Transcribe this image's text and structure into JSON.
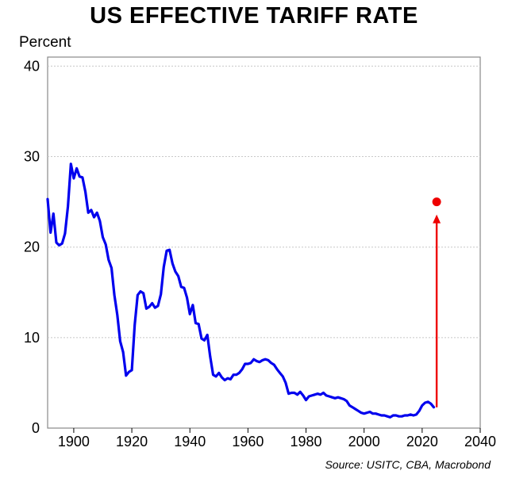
{
  "chart_data": {
    "type": "line",
    "title": "US EFFECTIVE TARIFF RATE",
    "ylabel": "Percent",
    "xlabel": "",
    "source": "Source: USITC, CBA, Macrobond",
    "xlim": [
      1891,
      2040
    ],
    "ylim": [
      0,
      41
    ],
    "xticks": [
      1900,
      1920,
      1940,
      1960,
      1980,
      2000,
      2020,
      2040
    ],
    "yticks": [
      0,
      10,
      20,
      30,
      40
    ],
    "grid": true,
    "series": [
      {
        "name": "US effective tariff rate",
        "color": "#0000ee",
        "x": [
          1891,
          1892,
          1893,
          1894,
          1895,
          1896,
          1897,
          1898,
          1899,
          1900,
          1901,
          1902,
          1903,
          1904,
          1905,
          1906,
          1907,
          1908,
          1909,
          1910,
          1911,
          1912,
          1913,
          1914,
          1915,
          1916,
          1917,
          1918,
          1919,
          1920,
          1921,
          1922,
          1923,
          1924,
          1925,
          1926,
          1927,
          1928,
          1929,
          1930,
          1931,
          1932,
          1933,
          1934,
          1935,
          1936,
          1937,
          1938,
          1939,
          1940,
          1941,
          1942,
          1943,
          1944,
          1945,
          1946,
          1947,
          1948,
          1949,
          1950,
          1951,
          1952,
          1953,
          1954,
          1955,
          1956,
          1957,
          1958,
          1959,
          1960,
          1961,
          1962,
          1963,
          1964,
          1965,
          1966,
          1967,
          1968,
          1969,
          1970,
          1971,
          1972,
          1973,
          1974,
          1975,
          1976,
          1977,
          1978,
          1979,
          1980,
          1981,
          1982,
          1983,
          1984,
          1985,
          1986,
          1987,
          1988,
          1989,
          1990,
          1991,
          1992,
          1993,
          1994,
          1995,
          1996,
          1997,
          1998,
          1999,
          2000,
          2001,
          2002,
          2003,
          2004,
          2005,
          2006,
          2007,
          2008,
          2009,
          2010,
          2011,
          2012,
          2013,
          2014,
          2015,
          2016,
          2017,
          2018,
          2019,
          2020,
          2021,
          2022,
          2023,
          2024
        ],
        "values": [
          25.3,
          21.6,
          23.7,
          20.5,
          20.2,
          20.4,
          21.5,
          24.5,
          29.2,
          27.6,
          28.7,
          27.8,
          27.7,
          26.1,
          23.8,
          24.1,
          23.3,
          23.8,
          22.9,
          21.1,
          20.3,
          18.6,
          17.7,
          14.7,
          12.5,
          9.6,
          8.4,
          5.8,
          6.2,
          6.4,
          11.4,
          14.7,
          15.1,
          14.9,
          13.2,
          13.4,
          13.8,
          13.3,
          13.5,
          14.8,
          17.8,
          19.6,
          19.7,
          18.2,
          17.3,
          16.8,
          15.6,
          15.5,
          14.4,
          12.6,
          13.6,
          11.6,
          11.5,
          9.9,
          9.7,
          10.3,
          7.9,
          5.9,
          5.7,
          6.1,
          5.6,
          5.3,
          5.5,
          5.4,
          5.9,
          5.9,
          6.1,
          6.5,
          7.1,
          7.1,
          7.2,
          7.6,
          7.4,
          7.3,
          7.5,
          7.6,
          7.5,
          7.2,
          7.0,
          6.5,
          6.1,
          5.7,
          5.0,
          3.8,
          3.9,
          3.9,
          3.7,
          4.0,
          3.6,
          3.1,
          3.5,
          3.6,
          3.7,
          3.8,
          3.7,
          3.9,
          3.6,
          3.5,
          3.4,
          3.3,
          3.4,
          3.3,
          3.2,
          3.0,
          2.5,
          2.3,
          2.1,
          1.9,
          1.7,
          1.6,
          1.7,
          1.8,
          1.6,
          1.6,
          1.5,
          1.4,
          1.4,
          1.3,
          1.2,
          1.4,
          1.4,
          1.3,
          1.3,
          1.4,
          1.4,
          1.5,
          1.4,
          1.5,
          1.9,
          2.5,
          2.8,
          2.9,
          2.7,
          2.3
        ]
      }
    ],
    "projection": {
      "from": {
        "x": 2025,
        "y": 2.3
      },
      "to": {
        "x": 2025,
        "y": 25
      },
      "color": "#ee0000"
    }
  }
}
